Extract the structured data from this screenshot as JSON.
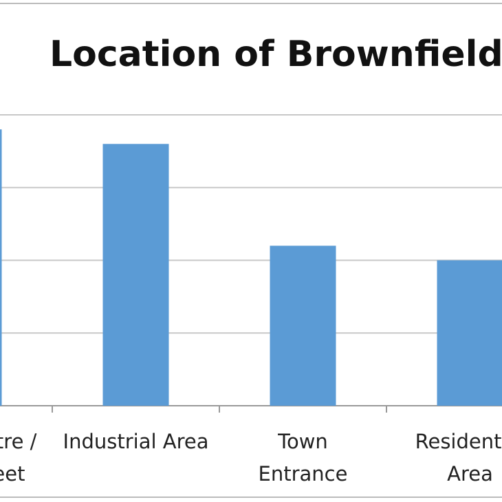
{
  "chart_data": {
    "type": "bar",
    "title": "Location of Brownfield",
    "categories": [
      "Town Centre /\nHigh Street",
      "Industrial Area",
      "Town\nEntrance",
      "Residential\nArea"
    ],
    "values": [
      19,
      18,
      11,
      10
    ],
    "color": "#5b9bd5",
    "ylim": [
      0,
      20
    ],
    "yticks": [
      0,
      5,
      10,
      15,
      20
    ],
    "grid": true
  }
}
